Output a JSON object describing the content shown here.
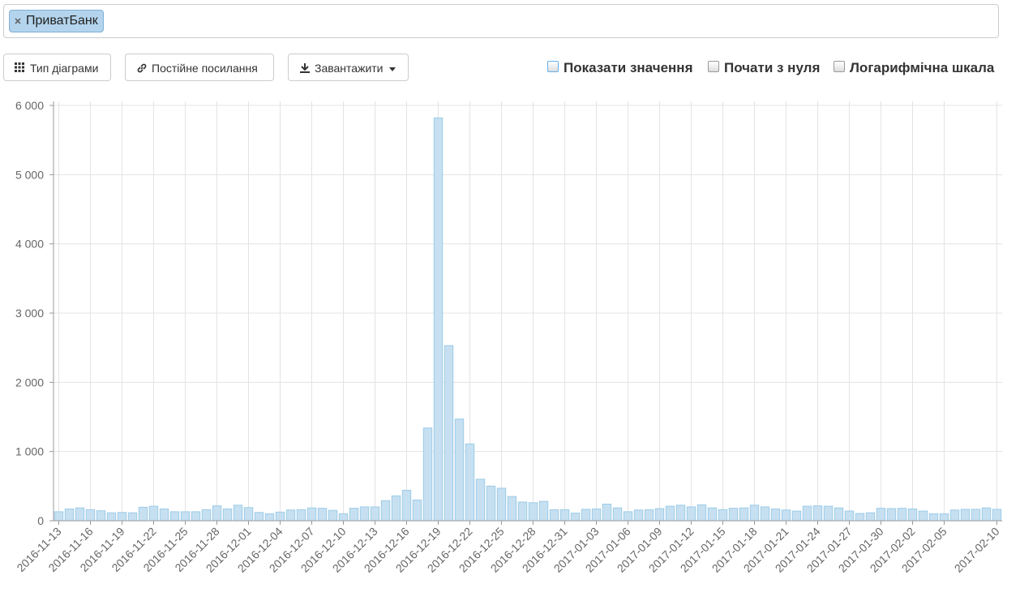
{
  "search": {
    "tag": "ПриватБанк"
  },
  "toolbar": {
    "chart_type": "Тип діаграми",
    "permalink": "Постійне посилання",
    "download": "Завантажити",
    "show_values": "Показати значення",
    "start_zero": "Почати з нуля",
    "log_scale": "Логарифмічна шкала"
  },
  "chart_data": {
    "type": "bar",
    "color": "#c6e0f1",
    "edge_color": "#9ccbe8",
    "grid": true,
    "categories": [
      "2016-11-13",
      null,
      null,
      "2016-11-16",
      null,
      null,
      "2016-11-19",
      null,
      null,
      "2016-11-22",
      null,
      null,
      "2016-11-25",
      null,
      null,
      "2016-11-28",
      null,
      null,
      "2016-12-01",
      null,
      null,
      "2016-12-04",
      null,
      null,
      "2016-12-07",
      null,
      null,
      "2016-12-10",
      null,
      null,
      "2016-12-13",
      null,
      null,
      "2016-12-16",
      null,
      null,
      "2016-12-19",
      null,
      null,
      "2016-12-22",
      null,
      null,
      "2016-12-25",
      null,
      null,
      "2016-12-28",
      null,
      null,
      "2016-12-31",
      null,
      null,
      "2017-01-03",
      null,
      null,
      "2017-01-06",
      null,
      null,
      "2017-01-09",
      null,
      null,
      "2017-01-12",
      null,
      null,
      "2017-01-15",
      null,
      null,
      "2017-01-18",
      null,
      null,
      "2017-01-21",
      null,
      null,
      "2017-01-24",
      null,
      null,
      "2017-01-27",
      null,
      null,
      "2017-01-30",
      null,
      null,
      "2017-02-02",
      null,
      null,
      "2017-02-05",
      null,
      null,
      null,
      null,
      "2017-02-10"
    ],
    "values": [
      130,
      170,
      185,
      160,
      145,
      115,
      120,
      115,
      195,
      210,
      170,
      130,
      130,
      130,
      160,
      215,
      170,
      225,
      190,
      120,
      100,
      125,
      155,
      160,
      185,
      180,
      150,
      100,
      180,
      200,
      200,
      290,
      360,
      440,
      300,
      1340,
      5820,
      2530,
      1470,
      1110,
      600,
      500,
      470,
      350,
      270,
      260,
      280,
      160,
      160,
      110,
      165,
      170,
      240,
      185,
      130,
      155,
      160,
      175,
      210,
      225,
      200,
      230,
      185,
      160,
      180,
      185,
      225,
      200,
      170,
      155,
      140,
      210,
      215,
      210,
      185,
      140,
      105,
      115,
      180,
      175,
      180,
      170,
      140,
      100,
      100,
      155,
      165,
      165,
      185,
      165
    ],
    "ylim": [
      0,
      6000
    ],
    "yticks": [
      {
        "value": 0,
        "label": "0"
      },
      {
        "value": 1000,
        "label": "1 000"
      },
      {
        "value": 2000,
        "label": "2 000"
      },
      {
        "value": 3000,
        "label": "3 000"
      },
      {
        "value": 4000,
        "label": "4 000"
      },
      {
        "value": 5000,
        "label": "5 000"
      },
      {
        "value": 6000,
        "label": "6 000"
      }
    ]
  }
}
